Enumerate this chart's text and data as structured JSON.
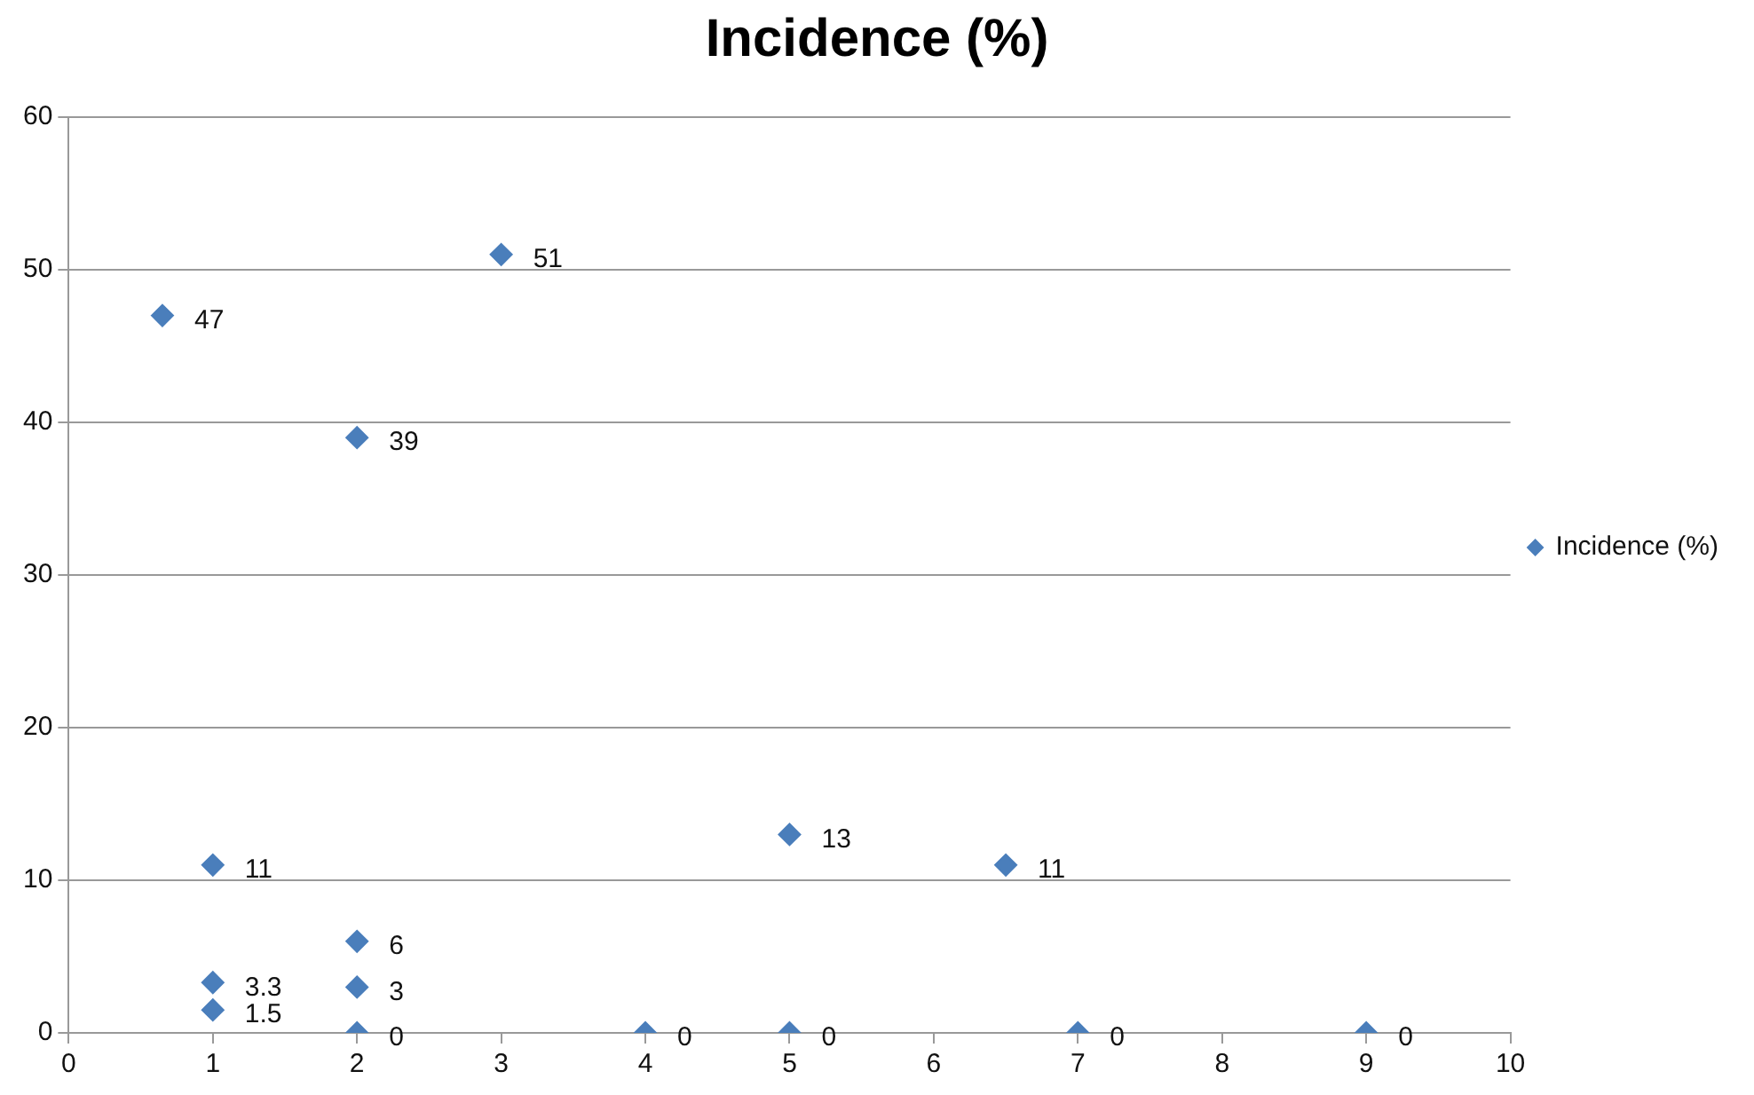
{
  "chart_data": {
    "type": "scatter",
    "title": "Incidence (%)",
    "series": [
      {
        "name": "Incidence (%)",
        "color": "#4a7ebb",
        "x": [
          0.65,
          3,
          2,
          1,
          5,
          6.5,
          2,
          1,
          2,
          1,
          2,
          4,
          5,
          7,
          9
        ],
        "values": [
          47,
          51,
          39,
          11,
          13,
          11,
          6,
          3.3,
          3,
          1.5,
          0,
          0,
          0,
          0,
          0
        ]
      }
    ],
    "xlim": [
      0,
      10
    ],
    "xticks": [
      0,
      1,
      2,
      3,
      4,
      5,
      6,
      7,
      8,
      9,
      10
    ],
    "ylim": [
      0,
      60
    ],
    "yticks": [
      0,
      10,
      20,
      30,
      40,
      50,
      60
    ],
    "grid": "y",
    "legend": "right",
    "marker": "diamond",
    "data_labels": true
  }
}
